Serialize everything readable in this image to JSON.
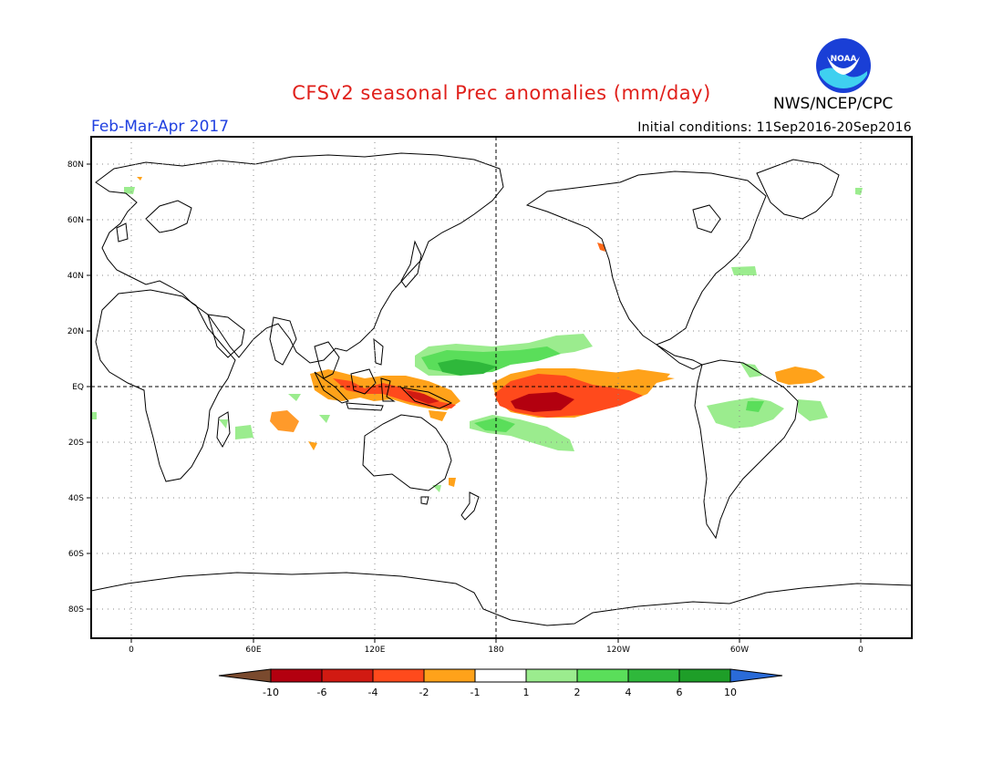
{
  "title": "CFSv2 seasonal Prec anomalies (mm/day)",
  "season": "Feb-Mar-Apr 2017",
  "initial_conditions": "Initial conditions: 11Sep2016-20Sep2016",
  "agency": "NWS/NCEP/CPC",
  "logo_text": "NOAA",
  "lat_labels": [
    "80N",
    "60N",
    "40N",
    "20N",
    "EQ",
    "20S",
    "40S",
    "60S",
    "80S"
  ],
  "lon_labels": [
    "0",
    "60E",
    "120E",
    "180",
    "120W",
    "60W",
    "0"
  ],
  "colorbar": {
    "labels": [
      "-10",
      "-6",
      "-4",
      "-2",
      "-1",
      "1",
      "2",
      "4",
      "6",
      "10"
    ],
    "colors": [
      "#7a4a2e",
      "#b3000f",
      "#d11a12",
      "#ff4a1c",
      "#ffa21a",
      "#ffffff",
      "#9bec8e",
      "#5ade5a",
      "#2fb83b",
      "#1e9e28",
      "#2a6bd8"
    ]
  },
  "colors": {
    "red": "#e0201b",
    "blue": "#2040e0",
    "light_green": "#9bec8e",
    "green": "#5ade5a",
    "dark_green": "#2fb83b",
    "orange": "#ffa21a",
    "orange_red": "#ff4a1c",
    "dark_red": "#b3000f"
  }
}
